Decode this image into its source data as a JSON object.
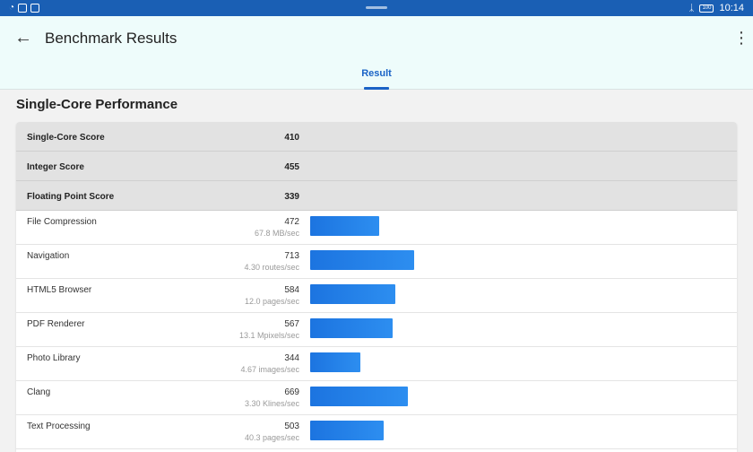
{
  "status": {
    "time": "10:14",
    "battery": "100"
  },
  "header": {
    "title": "Benchmark Results"
  },
  "tabs": [
    {
      "label": "Result"
    }
  ],
  "section": {
    "title": "Single-Core Performance"
  },
  "summary": [
    {
      "name": "Single-Core Score",
      "value": "410"
    },
    {
      "name": "Integer Score",
      "value": "455"
    },
    {
      "name": "Floating Point Score",
      "value": "339"
    }
  ],
  "workloads": [
    {
      "name": "File Compression",
      "score": 472,
      "value": "472",
      "rate": "67.8 MB/sec"
    },
    {
      "name": "Navigation",
      "score": 713,
      "value": "713",
      "rate": "4.30 routes/sec"
    },
    {
      "name": "HTML5 Browser",
      "score": 584,
      "value": "584",
      "rate": "12.0 pages/sec"
    },
    {
      "name": "PDF Renderer",
      "score": 567,
      "value": "567",
      "rate": "13.1 Mpixels/sec"
    },
    {
      "name": "Photo Library",
      "score": 344,
      "value": "344",
      "rate": "4.67 images/sec"
    },
    {
      "name": "Clang",
      "score": 669,
      "value": "669",
      "rate": "3.30 Klines/sec"
    },
    {
      "name": "Text Processing",
      "score": 503,
      "value": "503",
      "rate": "40.3 pages/sec"
    }
  ],
  "colors": {
    "accent": "#1a63c6",
    "bar": "#1c74e0",
    "statusbar": "#1a5fb4"
  },
  "icons": {
    "back": "arrow-left-icon",
    "menu": "more-vert-icon"
  }
}
